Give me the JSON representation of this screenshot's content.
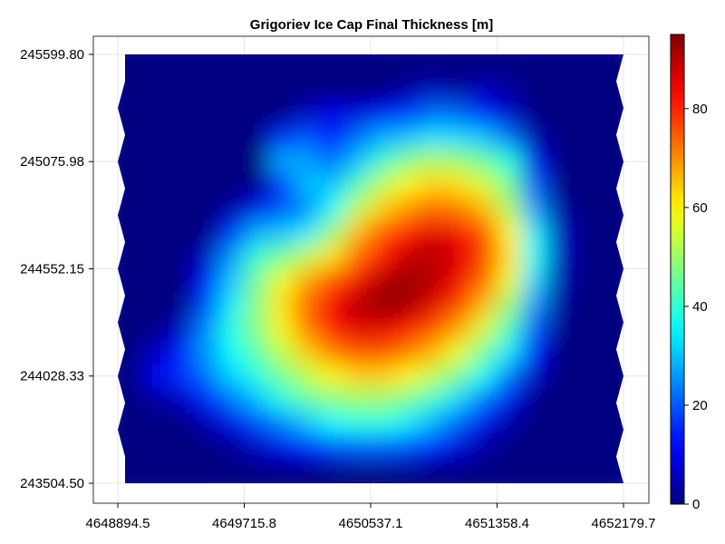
{
  "chart_data": {
    "type": "heatmap",
    "title": "Grigoriev Ice Cap Final Thickness [m]",
    "xlabel": "",
    "ylabel": "",
    "xlim": [
      4648894.5,
      4652179.7
    ],
    "ylim": [
      243504.5,
      245599.8
    ],
    "x_ticks": [
      "4648894.5",
      "4649715.8",
      "4650537.1",
      "4651358.4",
      "4652179.7"
    ],
    "x_tick_values": [
      4648894.5,
      4649715.8,
      4650537.1,
      4651358.4,
      4652179.7
    ],
    "y_ticks": [
      "245599.80",
      "245075.98",
      "244552.15",
      "244028.33",
      "243504.50"
    ],
    "y_tick_values": [
      245599.8,
      245075.98,
      244552.15,
      244028.33,
      243504.5
    ],
    "colormap": "jet",
    "colorbar": {
      "range": [
        0,
        95
      ],
      "ticks": [
        "0",
        "20",
        "40",
        "60",
        "80"
      ],
      "tick_values": [
        0,
        20,
        40,
        60,
        80
      ]
    },
    "grid": true,
    "values": [
      [
        0,
        0,
        0,
        0,
        0,
        0,
        0,
        0,
        0,
        0,
        0,
        0,
        0,
        0,
        0,
        0,
        0,
        0,
        0,
        0
      ],
      [
        0,
        0,
        0,
        0,
        0,
        0,
        0,
        0,
        0,
        0,
        0,
        3,
        6,
        2,
        6,
        3,
        0,
        0,
        0,
        0
      ],
      [
        0,
        0,
        0,
        0,
        0,
        0,
        0,
        6,
        10,
        8,
        13,
        16,
        22,
        21,
        13,
        6,
        0,
        0,
        0,
        0
      ],
      [
        0,
        0,
        0,
        0,
        0,
        0,
        16,
        20,
        12,
        22,
        28,
        30,
        33,
        32,
        30,
        22,
        4,
        0,
        0,
        0
      ],
      [
        0,
        0,
        0,
        0,
        0,
        0,
        28,
        27,
        22,
        30,
        40,
        48,
        52,
        50,
        45,
        38,
        10,
        0,
        0,
        0
      ],
      [
        0,
        0,
        0,
        0,
        0,
        0,
        16,
        30,
        30,
        42,
        54,
        60,
        64,
        62,
        56,
        46,
        20,
        0,
        0,
        0
      ],
      [
        0,
        0,
        0,
        0,
        3,
        10,
        20,
        24,
        36,
        54,
        64,
        70,
        74,
        72,
        66,
        52,
        26,
        3,
        0,
        0
      ],
      [
        0,
        0,
        0,
        0,
        16,
        28,
        30,
        34,
        50,
        66,
        76,
        82,
        86,
        84,
        76,
        60,
        34,
        6,
        0,
        0
      ],
      [
        0,
        0,
        0,
        6,
        26,
        40,
        46,
        54,
        62,
        74,
        82,
        88,
        90,
        86,
        78,
        62,
        36,
        6,
        0,
        0
      ],
      [
        0,
        0,
        0,
        12,
        30,
        46,
        58,
        68,
        76,
        84,
        90,
        93,
        90,
        84,
        74,
        58,
        32,
        4,
        0,
        0
      ],
      [
        0,
        0,
        0,
        18,
        34,
        48,
        62,
        74,
        84,
        90,
        94,
        92,
        86,
        78,
        66,
        50,
        26,
        3,
        0,
        0
      ],
      [
        0,
        0,
        6,
        24,
        38,
        48,
        60,
        72,
        82,
        86,
        86,
        82,
        76,
        68,
        56,
        42,
        20,
        0,
        0,
        0
      ],
      [
        0,
        6,
        14,
        26,
        36,
        44,
        54,
        64,
        72,
        76,
        76,
        72,
        66,
        58,
        46,
        34,
        12,
        0,
        0,
        0
      ],
      [
        0,
        10,
        16,
        22,
        32,
        38,
        46,
        54,
        60,
        64,
        64,
        60,
        54,
        46,
        36,
        22,
        6,
        0,
        0,
        0
      ],
      [
        0,
        3,
        6,
        14,
        22,
        30,
        38,
        44,
        48,
        50,
        50,
        46,
        40,
        32,
        22,
        10,
        0,
        0,
        0,
        0
      ],
      [
        0,
        0,
        0,
        4,
        10,
        18,
        24,
        30,
        36,
        38,
        38,
        34,
        28,
        20,
        10,
        3,
        0,
        0,
        0,
        0
      ],
      [
        0,
        0,
        0,
        0,
        2,
        6,
        10,
        14,
        18,
        20,
        20,
        18,
        14,
        8,
        3,
        0,
        0,
        0,
        0,
        0
      ],
      [
        0,
        0,
        0,
        0,
        0,
        0,
        0,
        0,
        0,
        0,
        0,
        0,
        0,
        0,
        0,
        0,
        0,
        0,
        0,
        0
      ]
    ]
  }
}
